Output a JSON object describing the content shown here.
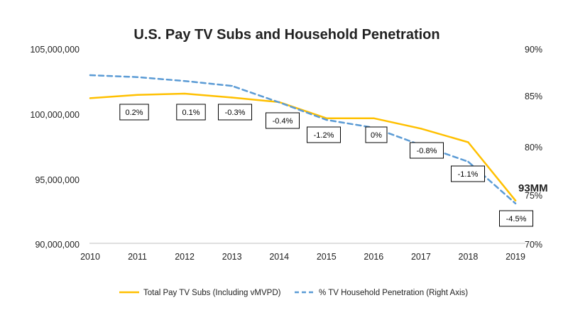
{
  "chart_data": {
    "type": "line",
    "title": "U.S. Pay TV Subs and Household Penetration",
    "categories": [
      "2010",
      "2011",
      "2012",
      "2013",
      "2014",
      "2015",
      "2016",
      "2017",
      "2018",
      "2019"
    ],
    "ylim_left": [
      90000000,
      105000000
    ],
    "ylim_right": [
      70,
      90
    ],
    "yticks_left": [
      "105,000,000",
      "100,000,000",
      "95,000,000",
      "90,000,000"
    ],
    "yticks_right": [
      "90%",
      "85%",
      "80%",
      "75%",
      "70%"
    ],
    "grid": false,
    "legend_position": "bottom",
    "series": [
      {
        "name": "Total Pay TV Subs (Including vMVPD)",
        "axis": "left",
        "color": "#FFC000",
        "style": "solid",
        "values": [
          101200000,
          101450000,
          101550000,
          101250000,
          100900000,
          99650000,
          99650000,
          98850000,
          97800000,
          93300000
        ]
      },
      {
        "name": "% TV Household Penetration (Right Axis)",
        "axis": "right",
        "color": "#5B9BD5",
        "style": "dashed",
        "values": [
          87.3,
          87.1,
          86.7,
          86.2,
          84.5,
          82.7,
          81.9,
          80.1,
          78.4,
          74.1
        ]
      }
    ],
    "data_labels": [
      "0.2%",
      "0.1%",
      "-0.3%",
      "-0.4%",
      "-1.2%",
      "0%",
      "-0.8%",
      "-1.1%",
      "-4.5%"
    ],
    "annotation": "93MM"
  }
}
